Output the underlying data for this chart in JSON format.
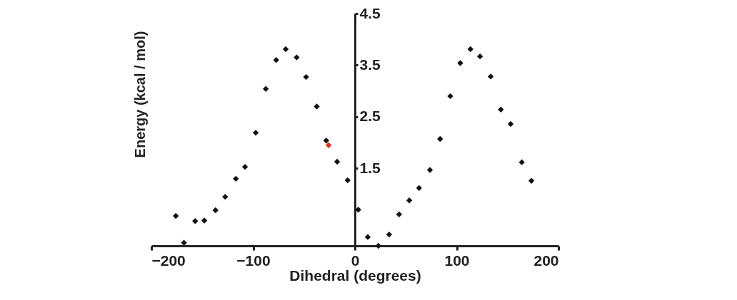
{
  "chart_data": {
    "type": "scatter",
    "xlabel": "Dihedral (degrees)",
    "ylabel": "Energy  (kcal / mol)",
    "xlim": [
      -200,
      200
    ],
    "xticks": [
      -200,
      -100,
      0,
      100,
      200
    ],
    "ylim": [
      0,
      4.5
    ],
    "yticks": [
      1.5,
      2.5,
      3.5,
      4.5
    ],
    "grid": false,
    "marker": "diamond",
    "series": [
      {
        "color": "#111111",
        "x": [
          -176,
          -168,
          -157,
          -148,
          -137,
          -127.5,
          -117,
          -108,
          -97.5,
          -87.6,
          -77.4,
          -68,
          -57.3,
          -48,
          -37.5,
          -28.2,
          -17.5,
          -7.2,
          3.3,
          12.6,
          23,
          33.6,
          43.4,
          53.4,
          63,
          73.7,
          83.7,
          93.7,
          103.5,
          113.5,
          122.9,
          133.4,
          143.4,
          153,
          164,
          173.4
        ],
        "values": [
          0.58,
          0.06,
          0.48,
          0.49,
          0.69,
          0.95,
          1.3,
          1.53,
          2.19,
          3.04,
          3.6,
          3.81,
          3.65,
          3.27,
          2.7,
          2.04,
          1.63,
          1.27,
          0.7,
          0.17,
          0.0,
          0.22,
          0.61,
          0.88,
          1.12,
          1.47,
          2.07,
          2.9,
          3.54,
          3.81,
          3.67,
          3.28,
          2.64,
          2.36,
          1.62,
          1.26
        ]
      },
      {
        "color": "#e0301e",
        "x": [
          -25.9
        ],
        "values": [
          1.95
        ]
      }
    ]
  }
}
